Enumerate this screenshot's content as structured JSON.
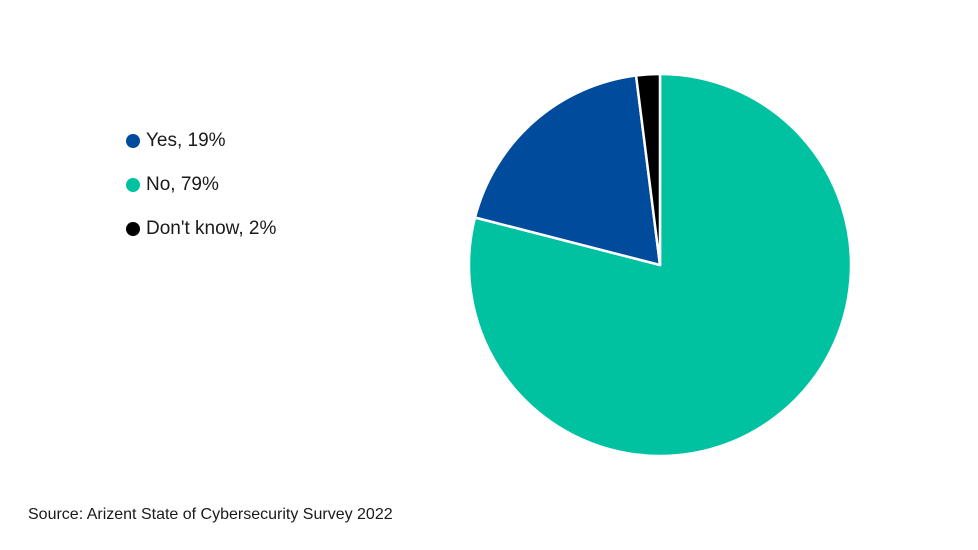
{
  "chart_data": {
    "type": "pie",
    "title": "",
    "slices": [
      {
        "label": "Yes",
        "value": 19,
        "display": "Yes, 19%",
        "color": "#004b9c"
      },
      {
        "label": "No",
        "value": 79,
        "display": "No, 79%",
        "color": "#00c1a0"
      },
      {
        "label": "Don't know",
        "value": 2,
        "display": "Don't know, 2%",
        "color": "#000000"
      }
    ],
    "legend_position": "left",
    "start_angle": "12 o'clock",
    "direction": "clockwise",
    "order": [
      "No",
      "Yes",
      "Don't know"
    ]
  },
  "source": "Source: Arizent State of Cybersecurity Survey 2022"
}
